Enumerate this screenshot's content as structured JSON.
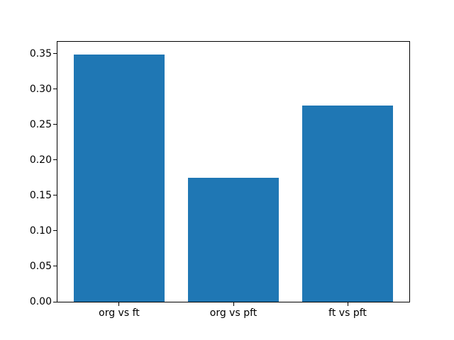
{
  "figure": {
    "background": "#ffffff",
    "axes_edge_color": "#000000",
    "tick_color": "#000000",
    "tick_label_color": "#000000"
  },
  "chart_data": {
    "type": "bar",
    "title": "",
    "xlabel": "",
    "ylabel": "",
    "categories": [
      "org vs ft",
      "org vs pft",
      "ft vs pft"
    ],
    "values": [
      0.349,
      0.175,
      0.277
    ],
    "bar_color": "#1f77b4",
    "bar_width": 0.8,
    "xlim": [
      -0.54,
      2.54
    ],
    "ylim": [
      0,
      0.3665
    ],
    "yticks": [
      0.0,
      0.05,
      0.1,
      0.15,
      0.2,
      0.25,
      0.3,
      0.35
    ],
    "ytick_decimals": 2,
    "grid": false,
    "legend": null
  }
}
